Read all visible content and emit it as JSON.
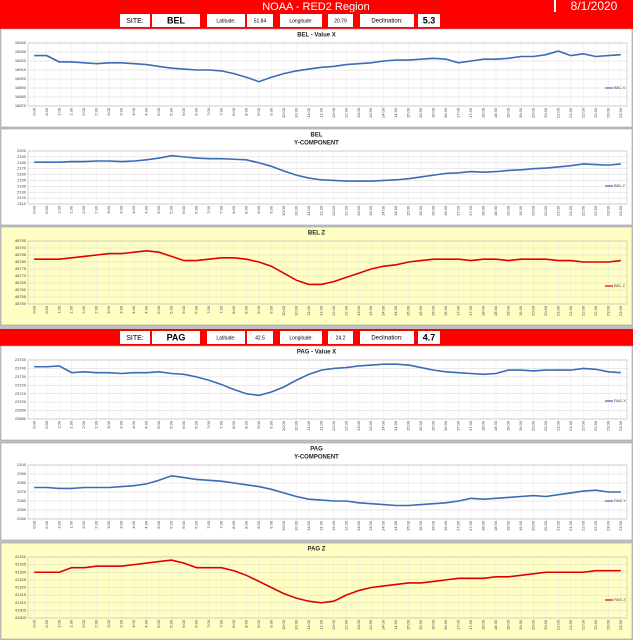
{
  "header": {
    "title": "NOAA - RED2 Region",
    "date": "8/1/2020"
  },
  "sites": [
    {
      "site_label": "SITE:",
      "site": "BEL",
      "lat_label": "Latitude:",
      "lat": 51.84,
      "lon_label": "Longitude:",
      "lon": 20.79,
      "dec_label": "Declination:",
      "dec": 5.3
    },
    {
      "site_label": "SITE:",
      "site": "PAG",
      "lat_label": "Latitude:",
      "lat": 42.5,
      "lon_label": "Longitude:",
      "lon": 24.2,
      "dec_label": "Declination:",
      "dec": 4.7
    }
  ],
  "chart_data": [
    {
      "type": "line",
      "title": [
        "BEL - Value X"
      ],
      "background": "#ffffff",
      "grid": true,
      "categories": [
        "0:00",
        "0:30",
        "1:00",
        "1:30",
        "2:00",
        "2:30",
        "3:00",
        "3:30",
        "4:00",
        "4:30",
        "5:00",
        "5:30",
        "6:00",
        "6:30",
        "7:00",
        "7:30",
        "8:00",
        "8:30",
        "9:00",
        "9:30",
        "10:00",
        "10:30",
        "11:00",
        "11:30",
        "12:00",
        "12:30",
        "13:00",
        "13:30",
        "14:00",
        "14:30",
        "15:00",
        "15:30",
        "16:00",
        "16:30",
        "17:00",
        "17:30",
        "18:00",
        "18:30",
        "19:00",
        "19:30",
        "20:00",
        "20:30",
        "21:00",
        "21:30",
        "22:00",
        "22:30",
        "23:00",
        "23:30"
      ],
      "series": [
        {
          "name": "BEL X",
          "color": "#3a6db3",
          "values": [
            18926,
            18926,
            18919,
            18919,
            18918,
            18917,
            18918,
            18918,
            18917,
            18916,
            18914,
            18912,
            18911,
            18910,
            18910,
            18909,
            18906,
            18902,
            18897,
            18902,
            18906,
            18909,
            18911,
            18913,
            18914,
            18916,
            18917,
            18918,
            18920,
            18921,
            18921,
            18922,
            18923,
            18922,
            18918,
            18920,
            18922,
            18922,
            18923,
            18925,
            18925,
            18927,
            18931,
            18926,
            18928,
            18925,
            18926,
            18927
          ]
        }
      ],
      "ylim": [
        18870,
        18940
      ],
      "yticks": [
        18870,
        18880,
        18890,
        18900,
        18910,
        18920,
        18930,
        18940
      ]
    },
    {
      "type": "line",
      "title": [
        "BEL",
        "Y-COMPONENT"
      ],
      "background": "#ffffff",
      "grid": true,
      "categories": [
        "0:00",
        "0:30",
        "1:00",
        "1:30",
        "2:00",
        "2:30",
        "3:00",
        "3:30",
        "4:00",
        "4:30",
        "5:00",
        "5:30",
        "6:00",
        "6:30",
        "7:00",
        "7:30",
        "8:00",
        "8:30",
        "9:00",
        "9:30",
        "10:00",
        "10:30",
        "11:00",
        "11:30",
        "12:00",
        "12:30",
        "13:00",
        "13:30",
        "14:00",
        "14:30",
        "15:00",
        "15:30",
        "16:00",
        "16:30",
        "17:00",
        "17:30",
        "18:00",
        "18:30",
        "19:00",
        "19:30",
        "20:00",
        "20:30",
        "21:00",
        "21:30",
        "22:00",
        "22:30",
        "23:00",
        "23:30"
      ],
      "series": [
        {
          "name": "BEL Y",
          "color": "#3a6db3",
          "values": [
            2181,
            2181,
            2181,
            2182,
            2182,
            2183,
            2183,
            2182,
            2183,
            2185,
            2188,
            2192,
            2190,
            2188,
            2187,
            2187,
            2186,
            2185,
            2180,
            2174,
            2166,
            2159,
            2154,
            2151,
            2150,
            2149,
            2149,
            2149,
            2150,
            2151,
            2153,
            2156,
            2159,
            2162,
            2163,
            2165,
            2164,
            2165,
            2167,
            2168,
            2170,
            2171,
            2173,
            2175,
            2178,
            2177,
            2176,
            2178
          ]
        }
      ],
      "ylim": [
        2110,
        2200
      ],
      "yticks": [
        2110,
        2120,
        2130,
        2140,
        2150,
        2160,
        2170,
        2180,
        2190,
        2200
      ]
    },
    {
      "type": "line",
      "title": [
        "BEL Z"
      ],
      "background": "#ffffc4",
      "grid": true,
      "categories": [
        "0:00",
        "0:30",
        "1:00",
        "1:30",
        "2:00",
        "2:30",
        "3:00",
        "3:30",
        "4:00",
        "4:30",
        "5:00",
        "5:30",
        "6:00",
        "6:30",
        "7:00",
        "7:30",
        "8:00",
        "8:30",
        "9:00",
        "9:30",
        "10:00",
        "10:30",
        "11:00",
        "11:30",
        "12:00",
        "12:30",
        "13:00",
        "13:30",
        "14:00",
        "14:30",
        "15:00",
        "15:30",
        "16:00",
        "16:30",
        "17:00",
        "17:30",
        "18:00",
        "18:30",
        "19:00",
        "19:30",
        "20:00",
        "20:30",
        "21:00",
        "21:30",
        "22:00",
        "22:30",
        "23:00",
        "23:30"
      ],
      "series": [
        {
          "name": "BEL Z",
          "color": "#e00000",
          "values": [
            46782,
            46782,
            46782,
            46783,
            46784,
            46785,
            46786,
            46786,
            46787,
            46788,
            46787,
            46784,
            46781,
            46781,
            46782,
            46783,
            46783,
            46782,
            46780,
            46777,
            46772,
            46767,
            46764,
            46764,
            46766,
            46769,
            46772,
            46775,
            46777,
            46778,
            46780,
            46781,
            46782,
            46782,
            46782,
            46781,
            46782,
            46782,
            46781,
            46782,
            46782,
            46782,
            46781,
            46781,
            46780,
            46780,
            46780,
            46781
          ]
        }
      ],
      "ylim": [
        46750,
        46795
      ],
      "yticks": [
        46750,
        46755,
        46760,
        46765,
        46770,
        46775,
        46780,
        46785,
        46790,
        46795
      ]
    },
    {
      "type": "line",
      "title": [
        "PAG - Value X"
      ],
      "background": "#ffffff",
      "grid": true,
      "categories": [
        "0:00",
        "0:30",
        "1:00",
        "1:30",
        "2:00",
        "2:30",
        "3:00",
        "3:30",
        "4:00",
        "4:30",
        "5:00",
        "5:30",
        "6:00",
        "6:30",
        "7:00",
        "7:30",
        "8:00",
        "8:30",
        "9:00",
        "9:30",
        "10:00",
        "10:30",
        "11:00",
        "11:30",
        "12:00",
        "12:30",
        "13:00",
        "13:30",
        "14:00",
        "14:30",
        "15:00",
        "15:30",
        "16:00",
        "16:30",
        "17:00",
        "17:30",
        "18:00",
        "18:30",
        "19:00",
        "19:30",
        "20:00",
        "20:30",
        "21:00",
        "21:30",
        "22:00",
        "22:30",
        "23:00",
        "23:30"
      ],
      "series": [
        {
          "name": "PAG X",
          "color": "#3a6db3",
          "values": [
            23742,
            23742,
            23743,
            23735,
            23736,
            23735,
            23735,
            23734,
            23735,
            23735,
            23736,
            23734,
            23733,
            23730,
            23726,
            23721,
            23715,
            23710,
            23708,
            23712,
            23718,
            23726,
            23733,
            23738,
            23740,
            23741,
            23743,
            23744,
            23745,
            23745,
            23744,
            23741,
            23738,
            23736,
            23735,
            23734,
            23733,
            23734,
            23738,
            23738,
            23737,
            23738,
            23738,
            23738,
            23740,
            23739,
            23736,
            23735
          ]
        }
      ],
      "ylim": [
        23680,
        23750
      ],
      "yticks": [
        23680,
        23690,
        23700,
        23710,
        23720,
        23730,
        23740,
        23750
      ]
    },
    {
      "type": "line",
      "title": [
        "PAG",
        "Y-COMPONENT"
      ],
      "background": "#ffffff",
      "grid": true,
      "categories": [
        "0:00",
        "0:30",
        "1:00",
        "1:30",
        "2:00",
        "2:30",
        "3:00",
        "3:30",
        "4:00",
        "4:30",
        "5:00",
        "5:30",
        "6:00",
        "6:30",
        "7:00",
        "7:30",
        "8:00",
        "8:30",
        "9:00",
        "9:30",
        "10:00",
        "10:30",
        "11:00",
        "11:30",
        "12:00",
        "12:30",
        "13:00",
        "13:30",
        "14:00",
        "14:30",
        "15:00",
        "15:30",
        "16:00",
        "16:30",
        "17:00",
        "17:30",
        "18:00",
        "18:30",
        "19:00",
        "19:30",
        "20:00",
        "20:30",
        "21:00",
        "21:30",
        "22:00",
        "22:30",
        "23:00",
        "23:30"
      ],
      "series": [
        {
          "name": "PAG Y",
          "color": "#3a6db3",
          "values": [
            2075,
            2075,
            2074,
            2074,
            2075,
            2075,
            2075,
            2076,
            2077,
            2079,
            2083,
            2088,
            2086,
            2084,
            2083,
            2082,
            2080,
            2078,
            2076,
            2073,
            2069,
            2065,
            2062,
            2061,
            2060,
            2060,
            2058,
            2057,
            2056,
            2055,
            2055,
            2056,
            2057,
            2058,
            2060,
            2063,
            2062,
            2063,
            2064,
            2065,
            2066,
            2065,
            2067,
            2069,
            2071,
            2072,
            2070,
            2070
          ]
        }
      ],
      "ylim": [
        2040,
        2100
      ],
      "yticks": [
        2040,
        2050,
        2060,
        2070,
        2080,
        2090,
        2100
      ]
    },
    {
      "type": "line",
      "title": [
        "PAG Z"
      ],
      "background": "#ffffc4",
      "grid": true,
      "categories": [
        "0:00",
        "0:30",
        "1:00",
        "1:30",
        "2:00",
        "2:30",
        "3:00",
        "3:30",
        "4:00",
        "4:30",
        "5:00",
        "5:30",
        "6:00",
        "6:30",
        "7:00",
        "7:30",
        "8:00",
        "8:30",
        "9:00",
        "9:30",
        "10:00",
        "10:30",
        "11:00",
        "11:30",
        "12:00",
        "12:30",
        "13:00",
        "13:30",
        "14:00",
        "14:30",
        "15:00",
        "15:30",
        "16:00",
        "16:30",
        "17:00",
        "17:30",
        "18:00",
        "18:30",
        "19:00",
        "19:30",
        "20:00",
        "20:30",
        "21:00",
        "21:30",
        "22:00",
        "22:30",
        "23:00",
        "23:30"
      ],
      "series": [
        {
          "name": "PAG Z",
          "color": "#e00000",
          "values": [
            41330,
            41330,
            41330,
            41333,
            41333,
            41334,
            41334,
            41334,
            41335,
            41336,
            41337,
            41338,
            41336,
            41333,
            41333,
            41333,
            41331,
            41328,
            41324,
            41320,
            41316,
            41313,
            41311,
            41310,
            41311,
            41315,
            41318,
            41320,
            41321,
            41322,
            41323,
            41323,
            41324,
            41325,
            41326,
            41326,
            41326,
            41327,
            41327,
            41328,
            41329,
            41330,
            41330,
            41330,
            41330,
            41331,
            41331,
            41331
          ]
        }
      ],
      "ylim": [
        41300,
        41340
      ],
      "yticks": [
        41300,
        41305,
        41310,
        41315,
        41320,
        41325,
        41330,
        41335,
        41340
      ]
    }
  ]
}
